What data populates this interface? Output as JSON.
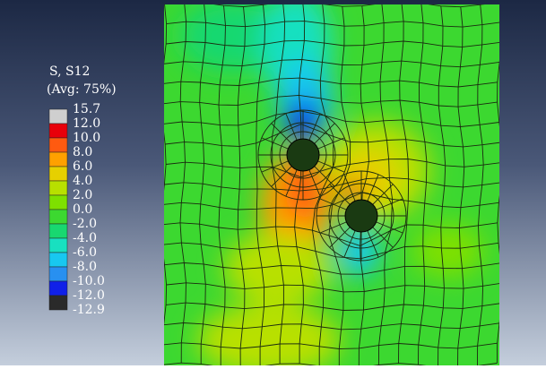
{
  "legend": {
    "title": "S, S12",
    "subtitle": "(Avg: 75%)",
    "labels": [
      "15.7",
      "12.0",
      "10.0",
      "8.0",
      "6.0",
      "4.0",
      "2.0",
      "0.0",
      "-2.0",
      "-4.0",
      "-6.0",
      "-8.0",
      "-10.0",
      "-12.0",
      "-12.9"
    ],
    "colors": [
      "#cfcfcf",
      "#e8000a",
      "#ff5a10",
      "#ffa000",
      "#e6d000",
      "#b8e000",
      "#7ee000",
      "#3cd830",
      "#18d870",
      "#18e0c0",
      "#18c8f0",
      "#2890f0",
      "#1020e8",
      "#2a2a2a"
    ]
  }
}
